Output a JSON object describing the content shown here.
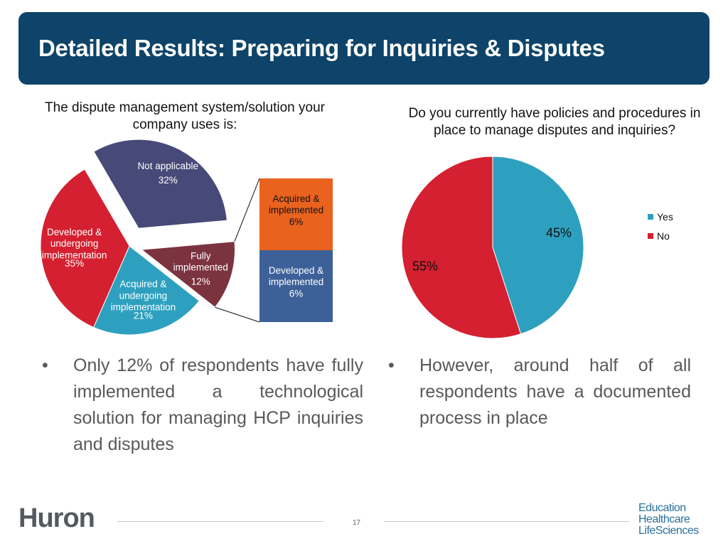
{
  "header": {
    "title": "Detailed Results: Preparing for Inquiries & Disputes"
  },
  "chart_data": [
    {
      "type": "pie",
      "title": "The dispute management system/solution your company uses is:",
      "slices": [
        {
          "label": "Not applicable",
          "value": 32,
          "value_label": "32%",
          "color": "#474a78"
        },
        {
          "label": "Fully implemented",
          "value": 12,
          "value_label": "12%",
          "color": "#7b3340"
        },
        {
          "label": "Acquired & undergoing implementation",
          "value": 21,
          "value_label": "21%",
          "color": "#2ea0bf"
        },
        {
          "label": "Developed & undergoing implementation",
          "value": 35,
          "value_label": "35%",
          "color": "#d42030"
        }
      ],
      "breakdown": {
        "of": "Fully implemented",
        "segments": [
          {
            "label": "Acquired & implemented",
            "value": 6,
            "value_label": "6%",
            "color": "#e9621e"
          },
          {
            "label": "Developed & implemented",
            "value": 6,
            "value_label": "6%",
            "color": "#3d6098"
          }
        ]
      }
    },
    {
      "type": "pie",
      "title": "Do you currently have policies and procedures in place to manage disputes and inquiries?",
      "slices": [
        {
          "label": "Yes",
          "value": 45,
          "value_label": "45%",
          "color": "#2ea0bf"
        },
        {
          "label": "No",
          "value": 55,
          "value_label": "55%",
          "color": "#d42030"
        }
      ],
      "legend": "right"
    }
  ],
  "bullets": {
    "symbol": "•",
    "left": "Only 12% of respondents have fully implemented a technological solution for managing HCP inquiries and disputes",
    "right": "However, around half of all respondents have a documented process in place"
  },
  "footer": {
    "logo": "Huron",
    "page_number": "17",
    "brand_lines": [
      "Education",
      "Healthcare",
      "LifeSciences"
    ]
  }
}
